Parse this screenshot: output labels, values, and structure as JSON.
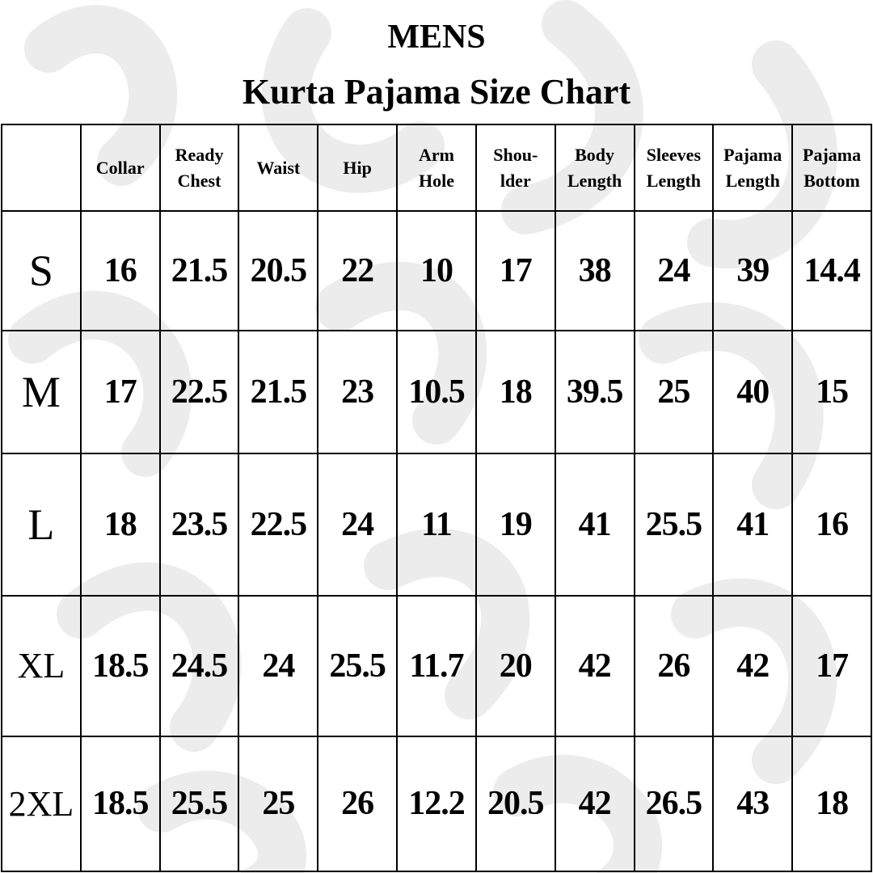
{
  "title": "MENS",
  "subtitle": "Kurta Pajama Size Chart",
  "colors": {
    "text": "#000000",
    "background": "#ffffff",
    "pattern": "#ececec"
  },
  "headers": [
    "",
    "Collar",
    "Ready Chest",
    "Waist",
    "Hip",
    "Arm Hole",
    "Shou-lder",
    "Body Length",
    "Sleeves Length",
    "Pajama Length",
    "Pajama Bottom"
  ],
  "header_lines": [
    [
      ""
    ],
    [
      "Collar"
    ],
    [
      "Ready",
      "Chest"
    ],
    [
      "Waist"
    ],
    [
      "Hip"
    ],
    [
      "Arm",
      "Hole"
    ],
    [
      "Shou-",
      "lder"
    ],
    [
      "Body",
      "Length"
    ],
    [
      "Sleeves",
      "Length"
    ],
    [
      "Pajama",
      "Length"
    ],
    [
      "Pajama",
      "Bottom"
    ]
  ],
  "rows": [
    {
      "size": "S",
      "values": [
        "16",
        "21.5",
        "20.5",
        "22",
        "10",
        "17",
        "38",
        "24",
        "39",
        "14.4"
      ]
    },
    {
      "size": "M",
      "values": [
        "17",
        "22.5",
        "21.5",
        "23",
        "10.5",
        "18",
        "39.5",
        "25",
        "40",
        "15"
      ]
    },
    {
      "size": "L",
      "values": [
        "18",
        "23.5",
        "22.5",
        "24",
        "11",
        "19",
        "41",
        "25.5",
        "41",
        "16"
      ]
    },
    {
      "size": "XL",
      "values": [
        "18.5",
        "24.5",
        "24",
        "25.5",
        "11.7",
        "20",
        "42",
        "26",
        "42",
        "17"
      ]
    },
    {
      "size": "2XL",
      "values": [
        "18.5",
        "25.5",
        "25",
        "26",
        "12.2",
        "20.5",
        "42",
        "26.5",
        "43",
        "18"
      ]
    }
  ]
}
